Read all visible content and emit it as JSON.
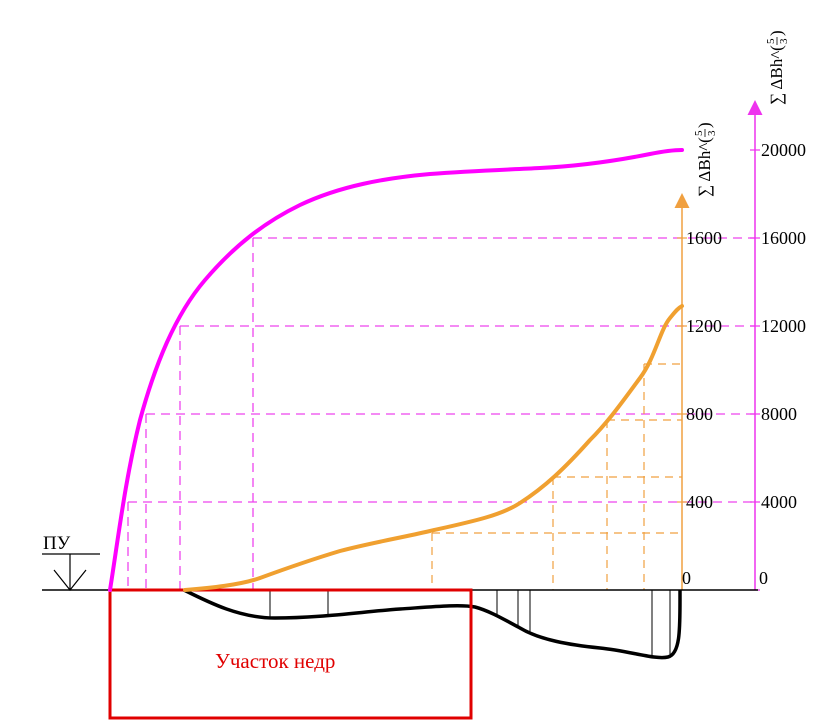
{
  "diagram": {
    "pu_label": "ПУ",
    "area_label": "Участок недр",
    "inner_axis": {
      "label_main": "∑ ΔBh^(",
      "label_frac_top": "5",
      "label_frac_bottom": "3",
      "label_close": ")",
      "ticks": [
        "0",
        "400",
        "800",
        "1200",
        "1600"
      ],
      "color": "#f0a040"
    },
    "outer_axis": {
      "label_main": "∑ ΔBh^(",
      "label_frac_top": "5",
      "label_frac_bottom": "3",
      "label_close": ")",
      "ticks": [
        "0",
        "4000",
        "8000",
        "12000",
        "16000",
        "20000"
      ],
      "color": "#ee33ee"
    },
    "colors": {
      "cumulative_curve": "#ff00ff",
      "local_curve": "#f0a030",
      "profile": "#000000",
      "area_box": "#e00000"
    }
  }
}
